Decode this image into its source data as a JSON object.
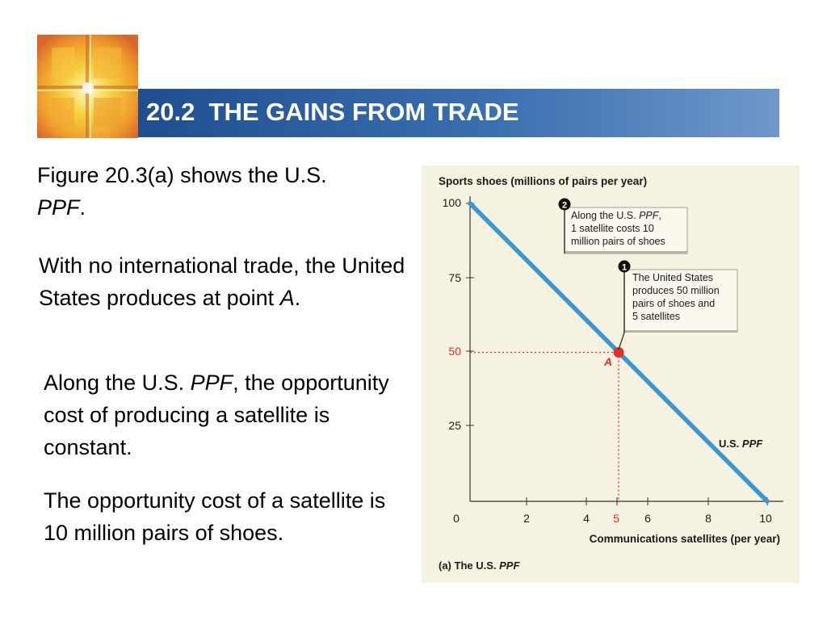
{
  "header": {
    "title": "20.2  THE GAINS FROM TRADE"
  },
  "body": {
    "p1_a": "Figure 20.3(a) shows the U.S. ",
    "p1_em": "PPF",
    "p1_b": ".",
    "p2_a": "With no international trade, the United States produces at point ",
    "p2_em": "A",
    "p2_b": ".",
    "p3_a": "Along the U.S. ",
    "p3_em": "PPF",
    "p3_b": ", the opportunity cost of producing a satellite is constant.",
    "p4": "The opportunity cost of a satellite is 10 million pairs of shoes."
  },
  "colors": {
    "title_bar": "#2f5f9f",
    "ppf_line": "#3d96d0",
    "highlight": "#e03027",
    "chart_bg": "#f6f2e1"
  },
  "chart_data": {
    "type": "line",
    "ylabel": "Sports shoes (millions of pairs per year)",
    "xlabel": "Communications satellites (per year)",
    "caption_a": "(a) The U.S. ",
    "caption_em": "PPF",
    "xlim": [
      0,
      10
    ],
    "ylim": [
      0,
      100
    ],
    "x_ticks": [
      "0",
      "2",
      "4",
      "6",
      "8",
      "10"
    ],
    "y_ticks": [
      "100",
      "75",
      "25"
    ],
    "grid": false,
    "series": [
      {
        "name": "U.S. PPF",
        "name_a": "U.S. ",
        "name_em": "PPF",
        "x": [
          0,
          10
        ],
        "y": [
          100,
          0
        ]
      }
    ],
    "point": {
      "label": "A",
      "x": 5,
      "y": 50,
      "x_label": "5",
      "y_label": "50"
    },
    "annotations": [
      {
        "number": "1",
        "lines": [
          "The United States",
          "produces 50 million",
          "pairs of shoes and",
          "5 satellites"
        ]
      },
      {
        "number": "2",
        "line1_a": "Along the U.S. ",
        "line1_em": "PPF",
        "line1_b": ",",
        "lines": [
          "1 satellite costs 10",
          "million pairs of shoes"
        ]
      }
    ]
  }
}
